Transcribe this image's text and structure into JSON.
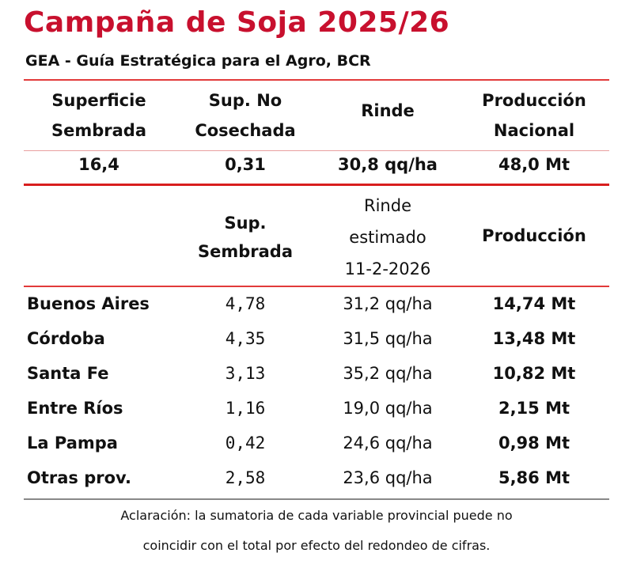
{
  "title": "Campaña de Soja 2025/26",
  "subtitle": "GEA - Guía Estratégica para el Agro, BCR",
  "national": {
    "headers": {
      "superficie_1": "Superficie",
      "superficie_2": "Sembrada",
      "nocosechada_1": "Sup. No",
      "nocosechada_2": "Cosechada",
      "rinde": "Rinde",
      "produccion_1": "Producción",
      "produccion_2": "Nacional"
    },
    "values": {
      "superficie": "16,4",
      "no_cosechada": "0,31",
      "rinde": "30,8 qq/ha",
      "produccion": "48,0 Mt"
    }
  },
  "provincial": {
    "headers": {
      "sup_1": "Sup.",
      "sup_2": "Sembrada",
      "rinde_1": "Rinde",
      "rinde_2": "estimado",
      "rinde_3": "11-2-2026",
      "produccion": "Producción"
    },
    "rows": [
      {
        "province": "Buenos Aires",
        "sup": "4,78",
        "rinde": "31,2 qq/ha",
        "produccion": "14,74 Mt"
      },
      {
        "province": "Córdoba",
        "sup": "4,35",
        "rinde": "31,5 qq/ha",
        "produccion": "13,48 Mt"
      },
      {
        "province": "Santa Fe",
        "sup": "3,13",
        "rinde": "35,2 qq/ha",
        "produccion": "10,82 Mt"
      },
      {
        "province": "Entre Ríos",
        "sup": "1,16",
        "rinde": "19,0 qq/ha",
        "produccion": "2,15 Mt"
      },
      {
        "province": "La Pampa",
        "sup": "0,42",
        "rinde": "24,6 qq/ha",
        "produccion": "0,98 Mt"
      },
      {
        "province": "Otras prov.",
        "sup": "2,58",
        "rinde": "23,6 qq/ha",
        "produccion": "5,86 Mt"
      }
    ]
  },
  "note_1": "Aclaración: la sumatoria de cada variable provincial puede no",
  "note_2": "coincidir con el total por efecto del redondeo de cifras.",
  "colors": {
    "title": "#c8102e",
    "rule": "#e23a3a"
  }
}
